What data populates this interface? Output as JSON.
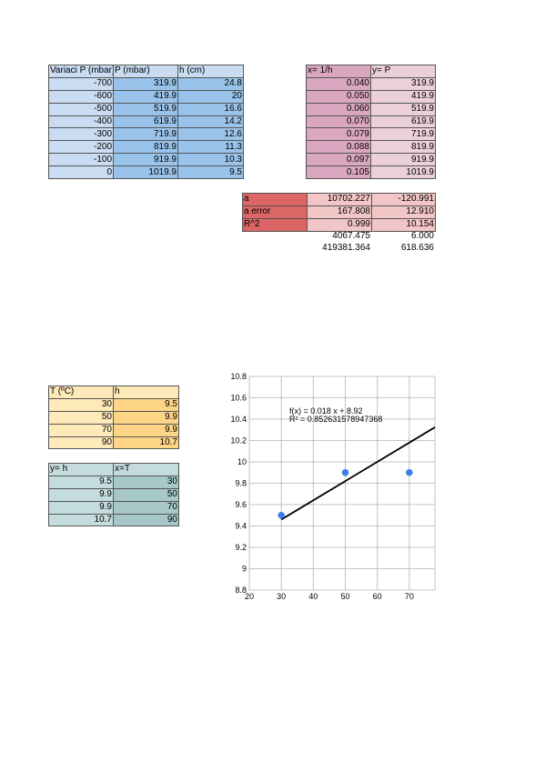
{
  "table1": {
    "headers": [
      "Variaci P (mbar)",
      "P (mbar)",
      "h (cm)"
    ],
    "rows": [
      [
        "-700",
        "319.9",
        "24.8"
      ],
      [
        "-600",
        "419.9",
        "20"
      ],
      [
        "-500",
        "519.9",
        "16.6"
      ],
      [
        "-400",
        "619.9",
        "14.2"
      ],
      [
        "-300",
        "719.9",
        "12.6"
      ],
      [
        "-200",
        "819.9",
        "11.3"
      ],
      [
        "-100",
        "919.9",
        "10.3"
      ],
      [
        "0",
        "1019.9",
        "9.5"
      ]
    ]
  },
  "table2": {
    "headers": [
      "x= 1/h",
      "y= P"
    ],
    "rows": [
      [
        "0.040",
        "319.9"
      ],
      [
        "0.050",
        "419.9"
      ],
      [
        "0.060",
        "519.9"
      ],
      [
        "0.070",
        "619.9"
      ],
      [
        "0.079",
        "719.9"
      ],
      [
        "0.088",
        "819.9"
      ],
      [
        "0.097",
        "919.9"
      ],
      [
        "0.105",
        "1019.9"
      ]
    ]
  },
  "stats": {
    "rows": [
      [
        "a",
        "10702.227",
        "-120.991"
      ],
      [
        "a error",
        "167.808",
        "12.910"
      ],
      [
        "R^2",
        "0.999",
        "10.154"
      ]
    ],
    "extra": [
      [
        "4067.475",
        "6.000"
      ],
      [
        "419381.364",
        "618.636"
      ]
    ]
  },
  "table3": {
    "headers": [
      "T (ºC)",
      "h"
    ],
    "rows": [
      [
        "30",
        "9.5"
      ],
      [
        "50",
        "9.9"
      ],
      [
        "70",
        "9.9"
      ],
      [
        "90",
        "10.7"
      ]
    ]
  },
  "table4": {
    "headers": [
      "y= h",
      "x=T"
    ],
    "rows": [
      [
        "9.5",
        "30"
      ],
      [
        "9.9",
        "50"
      ],
      [
        "9.9",
        "70"
      ],
      [
        "10.7",
        "90"
      ]
    ]
  },
  "chart_data": {
    "type": "scatter",
    "x": [
      30,
      50,
      70
    ],
    "y": [
      9.5,
      9.9,
      9.9
    ],
    "xlim": [
      20,
      78
    ],
    "ylim": [
      8.8,
      10.8
    ],
    "xticks": [
      20,
      30,
      40,
      50,
      60,
      70
    ],
    "yticks": [
      8.8,
      9,
      9.2,
      9.4,
      9.6,
      9.8,
      10,
      10.2,
      10.4,
      10.6,
      10.8
    ],
    "trendline": {
      "slope": 0.018,
      "intercept": 8.92
    },
    "annotation_line1": "f(x) = 0.018 x + 8.92",
    "annotation_line2": "R² = 0.852631578947368",
    "grid": true,
    "point_color": "#3c7ee3",
    "line_color": "#000000"
  }
}
